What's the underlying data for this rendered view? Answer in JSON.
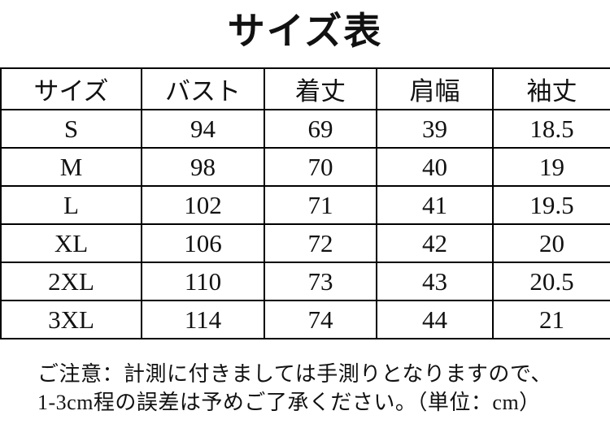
{
  "title": "サイズ表",
  "table": {
    "headers": [
      "サイズ",
      "バスト",
      "着丈",
      "肩幅",
      "袖丈"
    ],
    "rows": [
      [
        "S",
        "94",
        "69",
        "39",
        "18.5"
      ],
      [
        "M",
        "98",
        "70",
        "40",
        "19"
      ],
      [
        "L",
        "102",
        "71",
        "41",
        "19.5"
      ],
      [
        "XL",
        "106",
        "72",
        "42",
        "20"
      ],
      [
        "2XL",
        "110",
        "73",
        "43",
        "20.5"
      ],
      [
        "3XL",
        "114",
        "74",
        "44",
        "21"
      ]
    ]
  },
  "note": {
    "line1": "ご注意：計測に付きましては手測りとなりますので、",
    "line2": "1-3cm程の誤差は予めご了承ください。（単位：cm）"
  },
  "colors": {
    "text": "#111111",
    "border": "#000000",
    "background": "#ffffff"
  }
}
